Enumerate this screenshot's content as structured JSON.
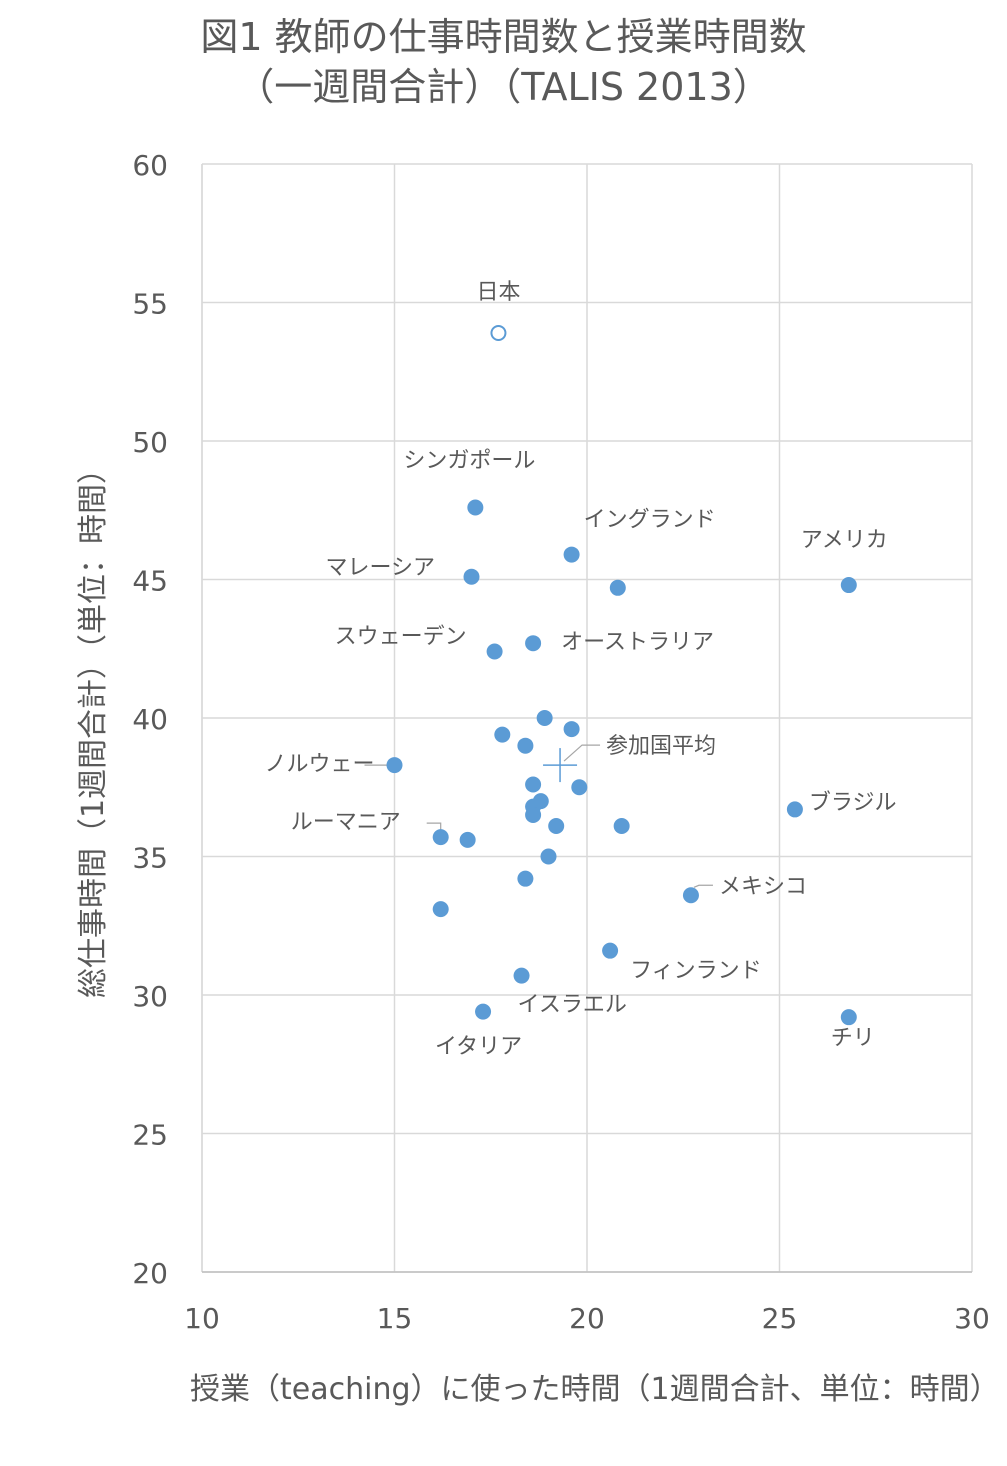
{
  "chart_data": {
    "type": "scatter",
    "title": [
      "図1 教師の仕事時間数と授業時間数",
      "（一週間合計）（TALIS 2013）"
    ],
    "xlabel": "授業（teaching）に使った時間（1週間合計、単位：時間）",
    "ylabel": "総仕事時間（1週間合計）（単位：時間）",
    "xlim": [
      10,
      30
    ],
    "ylim": [
      20,
      60
    ],
    "xticks": [
      "10",
      "15",
      "20",
      "25",
      "30"
    ],
    "yticks": [
      "20",
      "25",
      "30",
      "35",
      "40",
      "45",
      "50",
      "55",
      "60"
    ],
    "grid": true,
    "colors": {
      "marker": "#5b9bd5",
      "grid": "#d9d9d9",
      "text": "#595959"
    },
    "japan": {
      "label": "日本",
      "x": 17.7,
      "y": 53.9
    },
    "average": {
      "label": "参加国平均",
      "x": 19.3,
      "y": 38.3
    },
    "points": [
      {
        "label": "シンガポール",
        "x": 17.1,
        "y": 47.6
      },
      {
        "label": "イングランド",
        "x": 19.6,
        "y": 45.9
      },
      {
        "label": "アメリカ",
        "x": 26.8,
        "y": 44.8
      },
      {
        "label": "マレーシア",
        "x": 17.0,
        "y": 45.1
      },
      {
        "label": "",
        "x": 20.8,
        "y": 44.7
      },
      {
        "label": "オーストラリア",
        "x": 18.6,
        "y": 42.7
      },
      {
        "label": "スウェーデン",
        "x": 17.6,
        "y": 42.4
      },
      {
        "label": "",
        "x": 18.9,
        "y": 40.0
      },
      {
        "label": "",
        "x": 19.6,
        "y": 39.6
      },
      {
        "label": "",
        "x": 17.8,
        "y": 39.4
      },
      {
        "label": "",
        "x": 18.4,
        "y": 39.0
      },
      {
        "label": "ノルウェー",
        "x": 15.0,
        "y": 38.3
      },
      {
        "label": "",
        "x": 18.6,
        "y": 37.6
      },
      {
        "label": "",
        "x": 19.8,
        "y": 37.5
      },
      {
        "label": "",
        "x": 18.8,
        "y": 37.0
      },
      {
        "label": "",
        "x": 18.6,
        "y": 36.8
      },
      {
        "label": "ブラジル",
        "x": 25.4,
        "y": 36.7
      },
      {
        "label": "",
        "x": 18.6,
        "y": 36.5
      },
      {
        "label": "",
        "x": 19.2,
        "y": 36.1
      },
      {
        "label": "",
        "x": 20.9,
        "y": 36.1
      },
      {
        "label": "ルーマニア",
        "x": 16.2,
        "y": 35.7
      },
      {
        "label": "",
        "x": 16.9,
        "y": 35.6
      },
      {
        "label": "",
        "x": 19.0,
        "y": 35.0
      },
      {
        "label": "",
        "x": 18.4,
        "y": 34.2
      },
      {
        "label": "メキシコ",
        "x": 22.7,
        "y": 33.6
      },
      {
        "label": "",
        "x": 16.2,
        "y": 33.1
      },
      {
        "label": "フィンランド",
        "x": 20.6,
        "y": 31.6
      },
      {
        "label": "イスラエル",
        "x": 18.3,
        "y": 30.7
      },
      {
        "label": "イタリア",
        "x": 17.3,
        "y": 29.4
      },
      {
        "label": "チリ",
        "x": 26.8,
        "y": 29.2
      }
    ]
  }
}
